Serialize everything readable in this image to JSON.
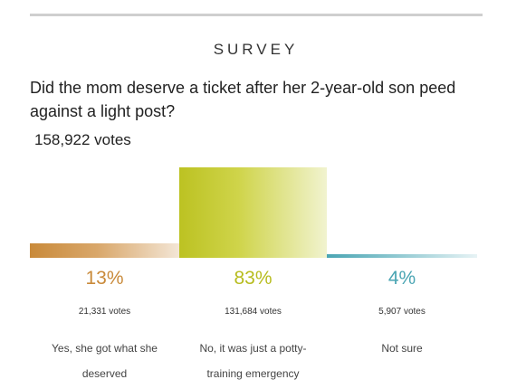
{
  "survey": {
    "heading": "SURVEY",
    "question": "Did the mom deserve a ticket after her 2-year-old son peed against a light post?",
    "total_votes": "158,922 votes",
    "options": [
      {
        "percent_label": "13%",
        "percent": 13,
        "votes": "21,331 votes",
        "label": "Yes, she got what she deserved",
        "color": "#c98a3a"
      },
      {
        "percent_label": "83%",
        "percent": 83,
        "votes": "131,684 votes",
        "label": "No, it was just a potty-training emergency",
        "color": "#bcc222"
      },
      {
        "percent_label": "4%",
        "percent": 4,
        "votes": "5,907 votes",
        "label": "Not sure",
        "color": "#4aa5b3"
      }
    ]
  }
}
